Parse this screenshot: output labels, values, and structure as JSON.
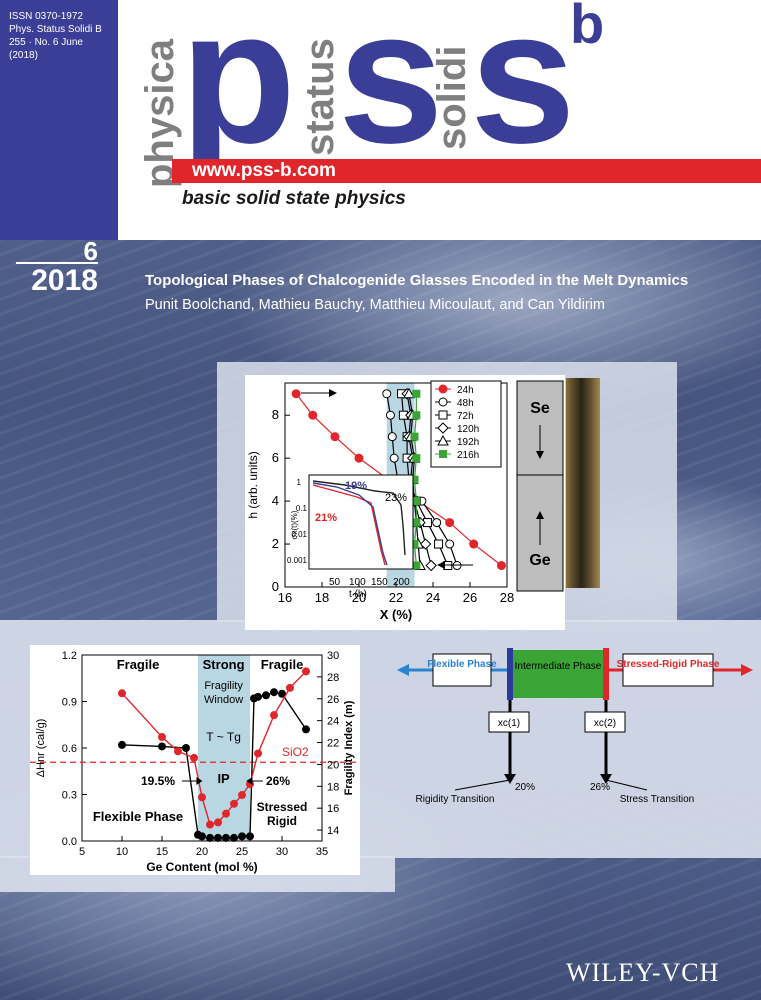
{
  "header": {
    "issn": [
      "ISSN 0370-1972",
      "Phys. Status Solidi B",
      "255 · No. 6 June",
      "(2018)"
    ],
    "logo_physica": "physica",
    "logo_status": "status",
    "logo_solidi": "solidi",
    "logo_p": "p",
    "logo_s1": "s",
    "logo_s2": "s",
    "logo_b": "b",
    "url": "www.pss-b.com",
    "tagline": "basic solid state physics",
    "colors": {
      "brand_blue": "#3b3e96",
      "red": "#e0262b",
      "grey": "#7f7f82"
    }
  },
  "issue": {
    "number": "6",
    "year": "2018"
  },
  "article": {
    "title": "Topological Phases of Chalcogenide Glasses Encoded in the Melt Dynamics",
    "authors": "Punit Boolchand, Mathieu Bauchy, Matthieu Micoulaut, and Can Yildirim"
  },
  "publisher": "WILEY-VCH",
  "chart_data": [
    {
      "type": "scatter",
      "xlabel": "X (%)",
      "ylabel": "h (arb. units)",
      "xlim": [
        16,
        28
      ],
      "ylim": [
        0,
        9.5
      ],
      "x_ticks": [
        "16",
        "18",
        "20",
        "22",
        "24",
        "26",
        "28"
      ],
      "y_ticks": [
        "0",
        "2",
        "4",
        "6",
        "8"
      ],
      "series": [
        {
          "name": "24h",
          "color": "#e0262b",
          "marker": "filled-circle",
          "x": [
            16.6,
            17.5,
            18.7,
            20.0,
            21.6,
            23.2,
            24.9,
            26.2,
            27.7
          ],
          "y": [
            9,
            8,
            7,
            6,
            5,
            4,
            3,
            2,
            1
          ]
        },
        {
          "name": "48h",
          "color": "#000000",
          "marker": "open-circle",
          "x": [
            21.5,
            21.7,
            21.8,
            21.9,
            22.1,
            23.4,
            24.2,
            24.9,
            25.3
          ],
          "y": [
            9,
            8,
            7,
            6,
            5,
            4,
            3,
            2,
            1
          ]
        },
        {
          "name": "72h",
          "color": "#000000",
          "marker": "open-square",
          "x": [
            22.3,
            22.4,
            22.6,
            22.6,
            22.7,
            23.1,
            23.7,
            24.3,
            24.8
          ],
          "y": [
            9,
            8,
            7,
            6,
            5,
            4,
            3,
            2,
            1
          ]
        },
        {
          "name": "120h",
          "color": "#000000",
          "marker": "open-diamond",
          "x": [
            22.6,
            22.8,
            22.7,
            22.9,
            22.8,
            23.0,
            23.3,
            23.6,
            23.9
          ],
          "y": [
            9,
            8,
            7,
            6,
            5,
            4,
            3,
            2,
            1
          ]
        },
        {
          "name": "192h",
          "color": "#000000",
          "marker": "open-triangle",
          "x": [
            22.7,
            22.9,
            22.8,
            23.0,
            22.9,
            23.0,
            23.1,
            23.2,
            23.3
          ],
          "y": [
            9,
            8,
            7,
            6,
            5,
            4,
            3,
            2,
            1
          ]
        },
        {
          "name": "216h",
          "color": "#3aa535",
          "marker": "filled-square",
          "x": [
            23.1,
            23.1,
            23.0,
            23.1,
            23.0,
            23.1,
            23.1,
            23.0,
            23.1
          ],
          "y": [
            9,
            8,
            7,
            6,
            5,
            4,
            3,
            2,
            1
          ]
        }
      ],
      "window": [
        21.5,
        23.0
      ],
      "side_labels": {
        "top": "Se",
        "bottom": "Ge"
      },
      "inset": {
        "xlabel": "t (h)",
        "ylabel": "σx(t)(%)",
        "x_ticks": [
          "50",
          "100",
          "150",
          "200"
        ],
        "y_ticks": [
          "1",
          "0.1",
          "0.01",
          "0.001"
        ],
        "annotations": [
          {
            "text": "19%",
            "color": "#3b3e96"
          },
          {
            "text": "23%",
            "color": "#000000"
          },
          {
            "text": "21%",
            "color": "#e0262b"
          }
        ]
      }
    },
    {
      "type": "line",
      "xlabel": "Ge Content (mol %)",
      "ylabel": "ΔHnr (cal/g)",
      "y2label": "Fragility Index (m)",
      "xlim": [
        5,
        35
      ],
      "ylim": [
        0,
        1.2
      ],
      "y2lim": [
        13,
        30
      ],
      "x_ticks": [
        "5",
        "10",
        "15",
        "20",
        "25",
        "30",
        "35"
      ],
      "y_ticks": [
        "0.0",
        "0.3",
        "0.6",
        "0.9",
        "1.2"
      ],
      "y2_ticks": [
        "14",
        "16",
        "18",
        "20",
        "22",
        "24",
        "26",
        "28",
        "30"
      ],
      "series": [
        {
          "name": "ΔHnr",
          "color": "#000000",
          "x": [
            10,
            15,
            18,
            19.5,
            20,
            21,
            22,
            23,
            24,
            25,
            26,
            26.5,
            27,
            28,
            29,
            30,
            33
          ],
          "y": [
            0.62,
            0.61,
            0.6,
            0.04,
            0.03,
            0.02,
            0.02,
            0.02,
            0.02,
            0.03,
            0.03,
            0.92,
            0.93,
            0.94,
            0.96,
            0.95,
            0.72
          ]
        },
        {
          "name": "Fragility Index",
          "color": "#e0262b",
          "x": [
            10,
            15,
            17,
            19,
            20,
            21,
            22,
            23,
            24,
            25,
            26,
            27,
            29,
            31,
            33
          ],
          "y": [
            26.5,
            22.5,
            21.2,
            20.6,
            17.0,
            14.5,
            14.7,
            15.5,
            16.4,
            17.2,
            18.2,
            21.0,
            24.5,
            27.0,
            28.5
          ]
        }
      ],
      "reference_line": {
        "label": "SiO2",
        "y2": 20.2
      },
      "window": [
        19.5,
        26
      ],
      "annotations": [
        "Fragile",
        "Strong",
        "Fragile",
        "Fragility",
        "Window",
        "T ~ Tg",
        "IP",
        "19.5%",
        "26%",
        "Flexible Phase",
        "Stressed",
        "Rigid"
      ]
    }
  ],
  "diagram": {
    "boxes": {
      "flexible": "Flexible Phase",
      "intermediate": "Intermediate Phase",
      "stressed": "Stressed-Rigid Phase"
    },
    "xc1": "xc(1)",
    "xc2": "xc(2)",
    "pct1": "20%",
    "pct2": "26%",
    "rigidity": "Rigidity Transition",
    "stress": "Stress Transition"
  }
}
